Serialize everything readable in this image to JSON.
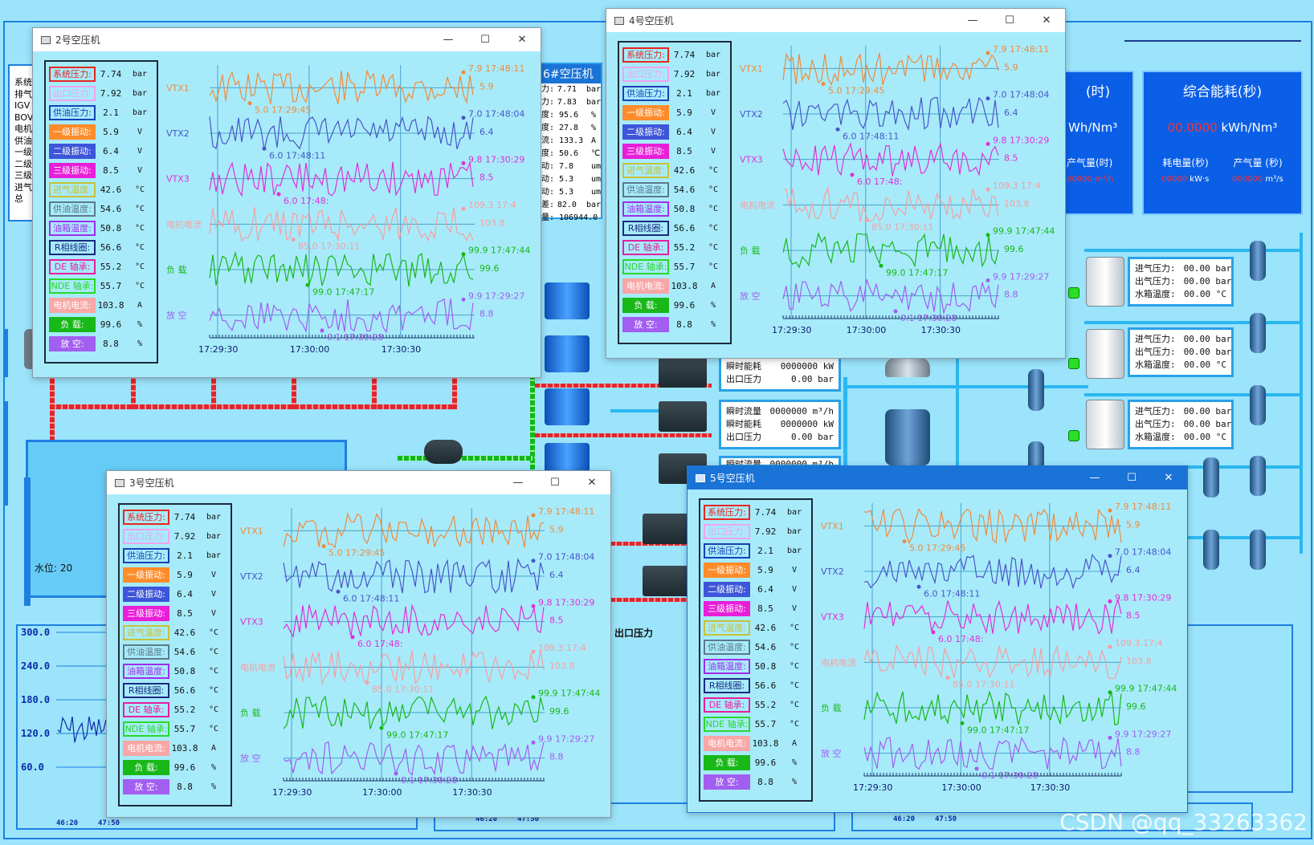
{
  "background": {
    "left_list": [
      "系统",
      "排气",
      "IGV",
      "BOV",
      "电机",
      "供油",
      "一级",
      "二级",
      "三级",
      "进气",
      "总"
    ],
    "panel_partial_title": "(时)",
    "panel_partial_unit": "Wh/Nm³",
    "panel_partial_row1": "产气量(时)",
    "panel_partial_row2": "00000  m³/h",
    "energy_panel": {
      "title": "综合能耗(秒)",
      "value": "00.0000",
      "unit": "kWh/Nm³",
      "label_left": "耗电量(秒)",
      "label_right": "产气量 (秒)",
      "val_left": "00000",
      "unit_left": "kW·s",
      "val_right": "000000",
      "unit_right": "m³/s"
    },
    "compressor6": {
      "title": "6#空压机",
      "rows": [
        {
          "k": "力:",
          "v": "7.71",
          "u": "bar"
        },
        {
          "k": "力:",
          "v": "7.83",
          "u": "bar"
        },
        {
          "k": "度:",
          "v": "95.6",
          "u": "%"
        },
        {
          "k": "度:",
          "v": "27.8",
          "u": "%"
        },
        {
          "k": "流:",
          "v": "133.3",
          "u": "A"
        },
        {
          "k": "度:",
          "v": "50.6",
          "u": "℃"
        },
        {
          "k": "动:",
          "v": "7.8",
          "u": "um"
        },
        {
          "k": "动:",
          "v": "5.3",
          "u": "um"
        },
        {
          "k": "动:",
          "v": "5.3",
          "u": "um"
        },
        {
          "k": "差:",
          "v": "82.0",
          "u": "bar"
        },
        {
          "k": "量:",
          "v": "106944.0",
          "u": ""
        }
      ]
    },
    "flow_boxes": [
      {
        "rows": [
          {
            "k": "瞬时能耗",
            "v": "0000000 kW"
          },
          {
            "k": "出口压力",
            "v": "0.00 bar"
          }
        ]
      },
      {
        "rows": [
          {
            "k": "瞬时流量",
            "v": "0000000 m³/h"
          },
          {
            "k": "瞬时能耗",
            "v": "0000000 kW"
          },
          {
            "k": "出口压力",
            "v": "0.00 bar"
          }
        ]
      },
      {
        "rows": [
          {
            "k": "瞬时流量",
            "v": "0000000 m³/h"
          }
        ]
      }
    ],
    "dryer_boxes": [
      {
        "rows": [
          {
            "k": "进气压力:",
            "v": "00.00 bar"
          },
          {
            "k": "出气压力:",
            "v": "00.00 bar"
          },
          {
            "k": "水箱温度:",
            "v": "00.00 °C"
          }
        ]
      },
      {
        "rows": [
          {
            "k": "进气压力:",
            "v": "00.00 bar"
          },
          {
            "k": "出气压力:",
            "v": "00.00 bar"
          },
          {
            "k": "水箱温度:",
            "v": "00.00 °C"
          }
        ]
      },
      {
        "rows": [
          {
            "k": "进气压力:",
            "v": "00.00 bar"
          },
          {
            "k": "出气压力:",
            "v": "00.00 bar"
          },
          {
            "k": "水箱温度:",
            "v": "00.00 °C"
          }
        ]
      }
    ],
    "water_level": "水位: 20",
    "outlet_pressure_label": "出口压力",
    "trend": {
      "y_ticks": [
        "300.0",
        "240.0",
        "180.0",
        "120.0",
        "60.0"
      ],
      "x_ticks": [
        "46:20",
        "47:50"
      ]
    },
    "mini_x_ticks": [
      [
        "46:20",
        "47:50"
      ],
      [
        "46:20",
        "47:50"
      ]
    ],
    "watermark": "CSDN @qq_33263362"
  },
  "params": [
    {
      "label": "系统压力:",
      "value": "7.74",
      "unit": "bar",
      "color": "#e8261f",
      "border": "#e8261f",
      "bg": "transparent",
      "text": "#e8261f"
    },
    {
      "label": "出口压力:",
      "value": "7.92",
      "unit": "bar",
      "color": "#f2a2f0",
      "border": "#f2a2f0",
      "bg": "transparent",
      "text": "#f2a2f0"
    },
    {
      "label": "供油压力:",
      "value": "2.1",
      "unit": "bar",
      "color": "#1a3fb8",
      "border": "#1a3fb8",
      "bg": "transparent",
      "text": "#1a3fb8"
    },
    {
      "label": "一级振动:",
      "value": "5.9",
      "unit": "V",
      "color": "#ff8c2a",
      "border": "#ff8c2a",
      "bg": "#ff8c2a",
      "text": "#ffffff"
    },
    {
      "label": "二级振动:",
      "value": "6.4",
      "unit": "V",
      "color": "#3d55d8",
      "border": "#3d55d8",
      "bg": "#3d55d8",
      "text": "#ffffff"
    },
    {
      "label": "三级振动:",
      "value": "8.5",
      "unit": "V",
      "color": "#e81ed8",
      "border": "#e81ed8",
      "bg": "#e81ed8",
      "text": "#ffffff"
    },
    {
      "label": "进气温度:",
      "value": "42.6",
      "unit": "°C",
      "color": "#c8c236",
      "border": "#c8c236",
      "bg": "transparent",
      "text": "#c8c236"
    },
    {
      "label": "供油温度:",
      "value": "54.6",
      "unit": "°C",
      "color": "#5a7a8a",
      "border": "#5a7a8a",
      "bg": "transparent",
      "text": "#5a7a8a"
    },
    {
      "label": "油箱温度:",
      "value": "50.8",
      "unit": "°C",
      "color": "#a02cf0",
      "border": "#a02cf0",
      "bg": "transparent",
      "text": "#a02cf0"
    },
    {
      "label": "R相线圈:",
      "value": "56.6",
      "unit": "°C",
      "color": "#1a2a80",
      "border": "#1a2a80",
      "bg": "transparent",
      "text": "#1a2a80"
    },
    {
      "label": "DE 轴承:",
      "value": "55.2",
      "unit": "°C",
      "color": "#e81ea0",
      "border": "#e81ea0",
      "bg": "transparent",
      "text": "#e81ea0"
    },
    {
      "label": "NDE 轴承:",
      "value": "55.7",
      "unit": "°C",
      "color": "#2ad82a",
      "border": "#2ad82a",
      "bg": "transparent",
      "text": "#2ad82a"
    },
    {
      "label": "电机电流:",
      "value": "103.8",
      "unit": "A",
      "color": "#f8a6a6",
      "border": "#f8a6a6",
      "bg": "#f8a6a6",
      "text": "#ffffff"
    },
    {
      "label": "负    载:",
      "value": "99.6",
      "unit": "%",
      "color": "#18b818",
      "border": "#18b818",
      "bg": "#18b818",
      "text": "#ffffff"
    },
    {
      "label": "放    空:",
      "value": "8.8",
      "unit": "%",
      "color": "#a25ef0",
      "border": "#a25ef0",
      "bg": "#a25ef0",
      "text": "#ffffff"
    }
  ],
  "chart_data": {
    "type": "line",
    "x_ticks": [
      "17:29:30",
      "17:30:00",
      "17:30:30"
    ],
    "series": [
      {
        "name": "VTX1",
        "color": "#f08a3a",
        "current": "5.9",
        "max_label": "7.9 17:48:11",
        "min_label": "5.0 17:29:45"
      },
      {
        "name": "VTX2",
        "color": "#4a55c8",
        "current": "6.4",
        "max_label": "7.0 17:48:04",
        "min_label": "6.0 17:48:11"
      },
      {
        "name": "VTX3",
        "color": "#e030d8",
        "current": "8.5",
        "max_label": "9.8 17:30:29",
        "min_label": "6.0 17:48:"
      },
      {
        "name": "电机电流",
        "color": "#f4a0a0",
        "current": "103.8",
        "max_label": "109.3 17:4",
        "min_label": "85.0 17:30:11"
      },
      {
        "name": "负  载",
        "color": "#18b818",
        "current": "99.6",
        "max_label": "99.9 17:47:44",
        "min_label": "99.0 17:47:17"
      },
      {
        "name": "放  空",
        "color": "#a25ef0",
        "current": "8.8",
        "max_label": "9.9 17:29:27",
        "min_label": "0.1 17:30:28"
      }
    ]
  },
  "windows": [
    {
      "id": "w2",
      "title": "2号空压机"
    },
    {
      "id": "w4",
      "title": "4号空压机"
    },
    {
      "id": "w3",
      "title": "3号空压机"
    },
    {
      "id": "w5",
      "title": "5号空压机"
    }
  ],
  "window_controls": {
    "min": "—",
    "max": "☐",
    "close": "✕"
  }
}
